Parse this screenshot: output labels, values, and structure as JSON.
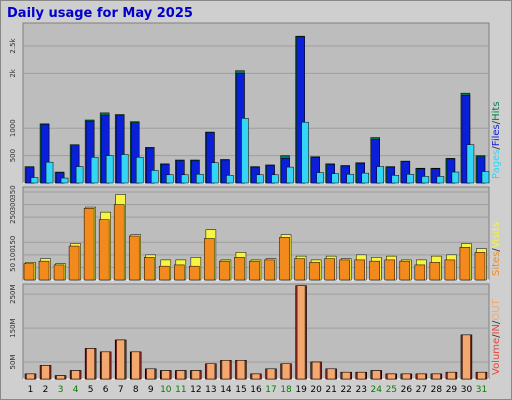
{
  "chart_data": {
    "type": "bar",
    "title": "Daily usage for May 2025",
    "categories": [
      "1",
      "2",
      "3",
      "4",
      "5",
      "6",
      "7",
      "8",
      "9",
      "10",
      "11",
      "12",
      "13",
      "14",
      "15",
      "16",
      "17",
      "18",
      "19",
      "20",
      "21",
      "22",
      "23",
      "24",
      "25",
      "26",
      "27",
      "28",
      "29",
      "30",
      "31"
    ],
    "weekend_days": [
      "3",
      "4",
      "10",
      "11",
      "17",
      "18",
      "24",
      "25",
      "31"
    ],
    "colors": {
      "title": "#0000cc",
      "background": "#cfcfcf",
      "plot_background": "#bdbdbd",
      "hits": "#007a4d",
      "files": "#0a1fd8",
      "pages": "#33d6f5",
      "visits": "#f5f542",
      "sites": "#f28a1e",
      "volume": "#e84535",
      "in_out": "#f2a86e",
      "weekday_label": "#000000",
      "weekend_label": "#008000"
    },
    "panels": [
      {
        "name": "hits-files-pages",
        "legend": [
          {
            "text": "Pages",
            "color": "#33d6f5"
          },
          {
            "text": "Files",
            "color": "#0a1fd8"
          },
          {
            "text": "Hits",
            "color": "#007a4d"
          }
        ],
        "yticks": [
          "500",
          "1000",
          "2k",
          "2.5k"
        ],
        "ytick_values": [
          500,
          1000,
          2000,
          2500
        ],
        "ylim": [
          0,
          2920
        ],
        "series": [
          {
            "name": "Hits",
            "values": [
              300,
              1080,
              200,
              700,
              1150,
              1280,
              1250,
              1120,
              650,
              350,
              420,
              420,
              930,
              430,
              2050,
              300,
              330,
              500,
              2680,
              480,
              350,
              320,
              370,
              830,
              300,
              400,
              270,
              270,
              450,
              1640,
              500
            ]
          },
          {
            "name": "Files",
            "values": [
              280,
              1070,
              190,
              680,
              1130,
              1240,
              1240,
              1100,
              640,
              340,
              410,
              410,
              920,
              420,
              2000,
              290,
              320,
              450,
              2670,
              470,
              340,
              310,
              360,
              800,
              290,
              390,
              260,
              260,
              440,
              1600,
              480
            ]
          },
          {
            "name": "Pages",
            "values": [
              100,
              380,
              90,
              300,
              470,
              500,
              520,
              470,
              230,
              150,
              150,
              160,
              370,
              140,
              1180,
              150,
              150,
              290,
              1110,
              190,
              170,
              160,
              180,
              300,
              140,
              160,
              120,
              120,
              200,
              700,
              210
            ]
          }
        ]
      },
      {
        "name": "visits-sites",
        "legend": [
          {
            "text": "Sites",
            "color": "#f28a1e"
          },
          {
            "text": "Visits",
            "color": "#f5f542"
          }
        ],
        "yticks": [
          "50",
          "100",
          "150",
          "250",
          "300",
          "350"
        ],
        "ytick_values": [
          50,
          100,
          150,
          250,
          300,
          350
        ],
        "ylim": [
          0,
          370
        ],
        "series": [
          {
            "name": "Visits",
            "values": [
              70,
              85,
              65,
              145,
              290,
              270,
              340,
              180,
              100,
              80,
              80,
              90,
              200,
              80,
              110,
              80,
              85,
              180,
              95,
              80,
              95,
              85,
              100,
              90,
              95,
              80,
              80,
              95,
              100,
              145,
              125
            ]
          },
          {
            "name": "Sites",
            "values": [
              65,
              75,
              60,
              135,
              285,
              240,
              300,
              175,
              90,
              55,
              60,
              55,
              165,
              75,
              90,
              75,
              80,
              170,
              85,
              70,
              85,
              80,
              80,
              75,
              80,
              75,
              60,
              70,
              80,
              130,
              110
            ]
          }
        ]
      },
      {
        "name": "volume",
        "legend": [
          {
            "text": "Volume",
            "color": "#e84535"
          },
          {
            "text": "IN",
            "color": "#e84535"
          },
          {
            "text": "OUT",
            "color": "#f2a86e"
          }
        ],
        "yticks": [
          "50M",
          "150M",
          "250M"
        ],
        "ytick_values": [
          50,
          150,
          250
        ],
        "ylim": [
          0,
          280
        ],
        "series": [
          {
            "name": "Volume",
            "values": [
              15,
              40,
              10,
              25,
              90,
              80,
              115,
              80,
              30,
              25,
              25,
              25,
              45,
              55,
              55,
              15,
              30,
              45,
              275,
              50,
              30,
              20,
              20,
              25,
              15,
              15,
              15,
              15,
              20,
              130,
              20
            ]
          },
          {
            "name": "IN",
            "values": [
              15,
              40,
              10,
              25,
              90,
              80,
              115,
              80,
              30,
              25,
              25,
              25,
              45,
              55,
              55,
              15,
              30,
              45,
              275,
              50,
              30,
              20,
              20,
              25,
              15,
              15,
              15,
              15,
              20,
              130,
              20
            ]
          },
          {
            "name": "OUT",
            "values": [
              15,
              40,
              10,
              25,
              90,
              80,
              115,
              80,
              30,
              25,
              25,
              25,
              45,
              55,
              55,
              15,
              30,
              45,
              275,
              50,
              30,
              20,
              20,
              25,
              15,
              15,
              15,
              15,
              20,
              130,
              20
            ]
          }
        ]
      }
    ]
  }
}
